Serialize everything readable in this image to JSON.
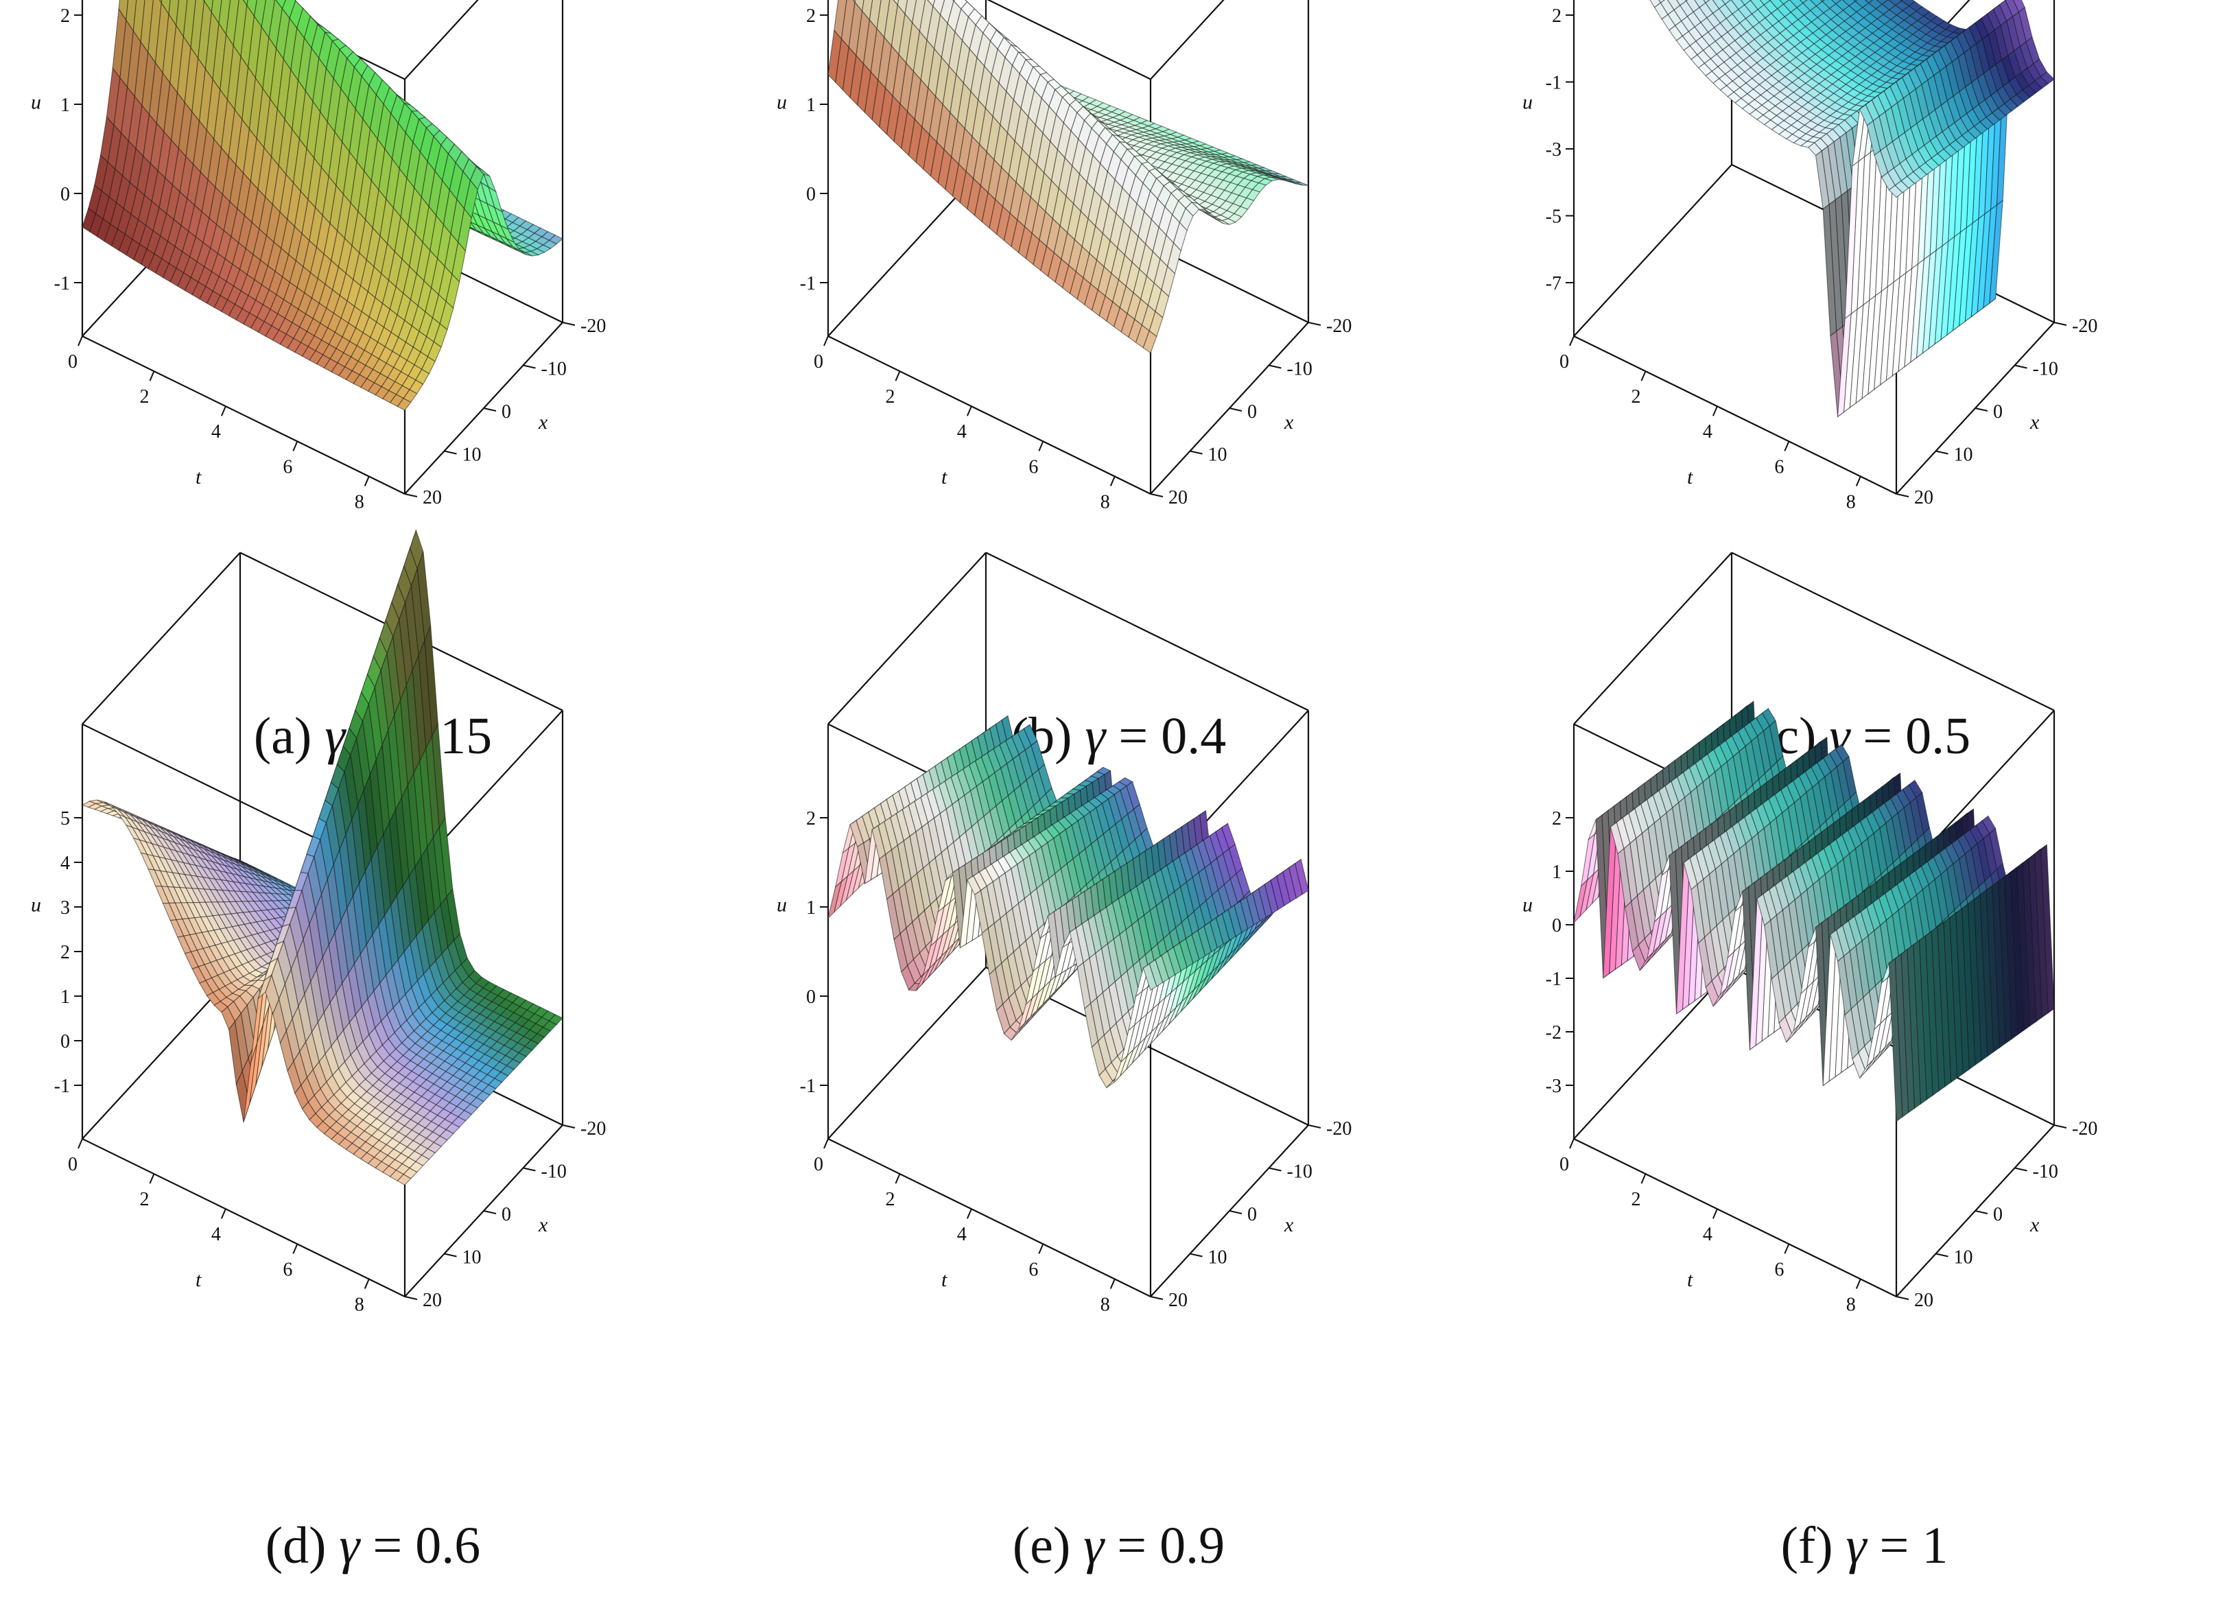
{
  "figure": {
    "panels": [
      {
        "letter": "(a)",
        "symbol": "γ",
        "equals": "=",
        "value": "0.15"
      },
      {
        "letter": "(b)",
        "symbol": "γ",
        "equals": "=",
        "value": "0.4"
      },
      {
        "letter": "(c)",
        "symbol": "γ",
        "equals": "=",
        "value": "0.5"
      },
      {
        "letter": "(d)",
        "symbol": "γ",
        "equals": "=",
        "value": "0.6"
      },
      {
        "letter": "(e)",
        "symbol": "γ",
        "equals": "=",
        "value": "0.9"
      },
      {
        "letter": "(f)",
        "symbol": "γ",
        "equals": "=",
        "value": "1"
      }
    ]
  },
  "chart_data": [
    {
      "type": "surface3d",
      "gamma": 0.15,
      "axis_names": {
        "x": "x",
        "t": "t",
        "u": "u"
      },
      "t_ticks": [
        "0",
        "2",
        "4",
        "6",
        "8"
      ],
      "x_ticks": [
        "-20",
        "-10",
        "0",
        "10",
        "20"
      ],
      "u_ticks": [
        "2",
        "1",
        "0",
        "-1"
      ],
      "t_range": [
        0,
        9
      ],
      "x_range": [
        -20,
        20
      ],
      "colors": [
        "#8a3230",
        "#c96a56",
        "#e1c15a",
        "#b9dd4e",
        "#5ee85a",
        "#6fd4d0",
        "#8a7fd9",
        "#c28ee0"
      ],
      "shape": "solitary"
    },
    {
      "type": "surface3d",
      "gamma": 0.4,
      "axis_names": {
        "x": "x",
        "t": "t",
        "u": "u"
      },
      "t_ticks": [
        "0",
        "2",
        "4",
        "6",
        "8"
      ],
      "x_ticks": [
        "-20",
        "-10",
        "0",
        "10",
        "20"
      ],
      "u_ticks": [
        "2",
        "1",
        "0",
        "-1"
      ],
      "t_range": [
        0,
        9
      ],
      "x_range": [
        -20,
        20
      ],
      "colors": [
        "#8a3230",
        "#e07a58",
        "#f1e4b6",
        "#ffffff",
        "#dff5e4",
        "#8df0c2",
        "#6a5fc4",
        "#b58ee0"
      ],
      "shape": "bump"
    },
    {
      "type": "surface3d",
      "gamma": 0.5,
      "axis_names": {
        "x": "x",
        "t": "t",
        "u": "u"
      },
      "t_ticks": [
        "0",
        "2",
        "4",
        "6",
        "8"
      ],
      "x_ticks": [
        "-20",
        "-10",
        "0",
        "10",
        "20"
      ],
      "u_ticks": [
        "2",
        "-1",
        "-3",
        "-5",
        "-7"
      ],
      "t_range": [
        0,
        9
      ],
      "x_range": [
        -20,
        20
      ],
      "colors": [
        "#b02a6c",
        "#e88ac0",
        "#ffffff",
        "#d8ecf4",
        "#5ee6e6",
        "#2fa0c8",
        "#2c2c7a",
        "#9a6ad8"
      ],
      "shape": "singular"
    },
    {
      "type": "surface3d",
      "gamma": 0.6,
      "axis_names": {
        "x": "x",
        "t": "t",
        "u": "u"
      },
      "t_ticks": [
        "0",
        "2",
        "4",
        "6",
        "8"
      ],
      "x_ticks": [
        "-20",
        "-10",
        "0",
        "10",
        "20"
      ],
      "u_ticks": [
        "5",
        "4",
        "3",
        "2",
        "1",
        "0",
        "-1"
      ],
      "t_range": [
        0,
        9
      ],
      "x_range": [
        -20,
        20
      ],
      "colors": [
        "#8a3230",
        "#e08a60",
        "#f6e6c8",
        "#b6a6e4",
        "#4aa8d8",
        "#2c7a3a",
        "#4ec04a",
        "#808040"
      ],
      "shape": "kink"
    },
    {
      "type": "surface3d",
      "gamma": 0.9,
      "axis_names": {
        "x": "x",
        "t": "t",
        "u": "u"
      },
      "t_ticks": [
        "0",
        "2",
        "4",
        "6",
        "8"
      ],
      "x_ticks": [
        "-20",
        "-10",
        "0",
        "10",
        "20"
      ],
      "u_ticks": [
        "2",
        "1",
        "0",
        "-1"
      ],
      "t_range": [
        0,
        9
      ],
      "x_range": [
        -20,
        20
      ],
      "colors": [
        "#8a3230",
        "#e8a0b0",
        "#f2e6c8",
        "#ffffff",
        "#5ad0a0",
        "#3aa0b8",
        "#8a5ad8",
        "#c070e0"
      ],
      "shape": "periodic"
    },
    {
      "type": "surface3d",
      "gamma": 1,
      "axis_names": {
        "x": "x",
        "t": "t",
        "u": "u"
      },
      "t_ticks": [
        "0",
        "2",
        "4",
        "6",
        "8"
      ],
      "x_ticks": [
        "-20",
        "-10",
        "0",
        "10",
        "20"
      ],
      "u_ticks": [
        "2",
        "1",
        "0",
        "-1",
        "-2",
        "-3"
      ],
      "t_range": [
        0,
        9
      ],
      "x_range": [
        -20,
        20
      ],
      "colors": [
        "#b02a6c",
        "#e8a0c8",
        "#ffffff",
        "#c8e6e6",
        "#4ad0c0",
        "#2fa0a8",
        "#3a3a8a",
        "#b070e0"
      ],
      "shape": "periodic-dense"
    }
  ]
}
